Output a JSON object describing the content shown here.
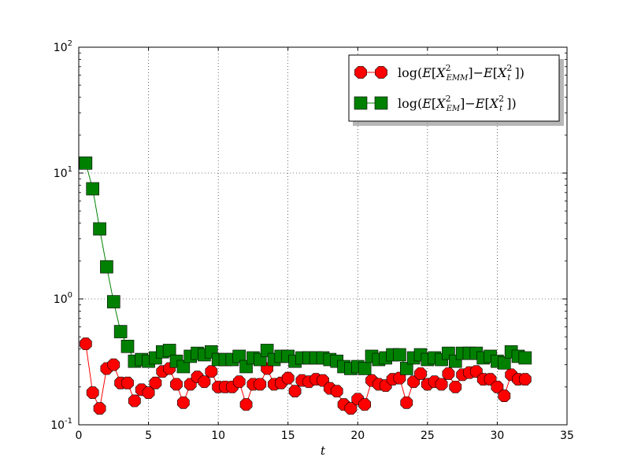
{
  "chart_data": {
    "type": "line",
    "title": "",
    "xlabel": "t",
    "ylabel": "",
    "xlim": [
      0,
      35
    ],
    "ylim": [
      0.1,
      100
    ],
    "yscale": "log",
    "grid": true,
    "legend_position": "top-right",
    "x_ticks": [
      0,
      5,
      10,
      15,
      20,
      25,
      30,
      35
    ],
    "y_ticks": [
      0.1,
      1,
      10,
      100
    ],
    "x_tick_labels": [
      "0",
      "5",
      "10",
      "15",
      "20",
      "25",
      "30",
      "35"
    ],
    "y_tick_labels": [
      {
        "base": "10",
        "exp": "-1"
      },
      {
        "base": "10",
        "exp": "0"
      },
      {
        "base": "10",
        "exp": "1"
      },
      {
        "base": "10",
        "exp": "2"
      }
    ],
    "x": [
      0.5,
      1.0,
      1.5,
      2.0,
      2.5,
      3.0,
      3.5,
      4.0,
      4.5,
      5.0,
      5.5,
      6.0,
      6.5,
      7.0,
      7.5,
      8.0,
      8.5,
      9.0,
      9.5,
      10.0,
      10.5,
      11.0,
      11.5,
      12.0,
      12.5,
      13.0,
      13.5,
      14.0,
      14.5,
      15.0,
      15.5,
      16.0,
      16.5,
      17.0,
      17.5,
      18.0,
      18.5,
      19.0,
      19.5,
      20.0,
      20.5,
      21.0,
      21.5,
      22.0,
      22.5,
      23.0,
      23.5,
      24.0,
      24.5,
      25.0,
      25.5,
      26.0,
      26.5,
      27.0,
      27.5,
      28.0,
      28.5,
      29.0,
      29.5,
      30.0,
      30.5,
      31.0,
      31.5,
      32.0
    ],
    "series": [
      {
        "legend_label": "log(E[X²_EMM]−E[X²_t ])",
        "color": "#ff0000",
        "marker": "octagon",
        "values": [
          0.44,
          0.18,
          0.135,
          0.28,
          0.3,
          0.215,
          0.215,
          0.155,
          0.19,
          0.18,
          0.215,
          0.265,
          0.28,
          0.21,
          0.15,
          0.21,
          0.24,
          0.22,
          0.265,
          0.2,
          0.2,
          0.2,
          0.22,
          0.145,
          0.21,
          0.21,
          0.28,
          0.21,
          0.215,
          0.235,
          0.185,
          0.225,
          0.22,
          0.23,
          0.225,
          0.195,
          0.185,
          0.145,
          0.135,
          0.16,
          0.145,
          0.225,
          0.21,
          0.205,
          0.23,
          0.235,
          0.15,
          0.22,
          0.255,
          0.21,
          0.22,
          0.21,
          0.255,
          0.2,
          0.25,
          0.26,
          0.265,
          0.23,
          0.23,
          0.2,
          0.17,
          0.25,
          0.23,
          0.23
        ]
      },
      {
        "legend_label": "log(E[X²_EM]−E[X²_t ])",
        "color": "#008000",
        "marker": "square",
        "values": [
          12.0,
          7.5,
          3.6,
          1.8,
          0.95,
          0.55,
          0.42,
          0.32,
          0.33,
          0.32,
          0.34,
          0.38,
          0.39,
          0.32,
          0.29,
          0.35,
          0.37,
          0.36,
          0.38,
          0.33,
          0.33,
          0.33,
          0.35,
          0.29,
          0.34,
          0.33,
          0.39,
          0.33,
          0.35,
          0.35,
          0.32,
          0.34,
          0.34,
          0.34,
          0.34,
          0.33,
          0.32,
          0.29,
          0.28,
          0.29,
          0.28,
          0.35,
          0.33,
          0.34,
          0.36,
          0.36,
          0.28,
          0.34,
          0.36,
          0.33,
          0.34,
          0.33,
          0.37,
          0.32,
          0.37,
          0.37,
          0.37,
          0.34,
          0.35,
          0.32,
          0.31,
          0.38,
          0.35,
          0.34
        ]
      }
    ]
  }
}
